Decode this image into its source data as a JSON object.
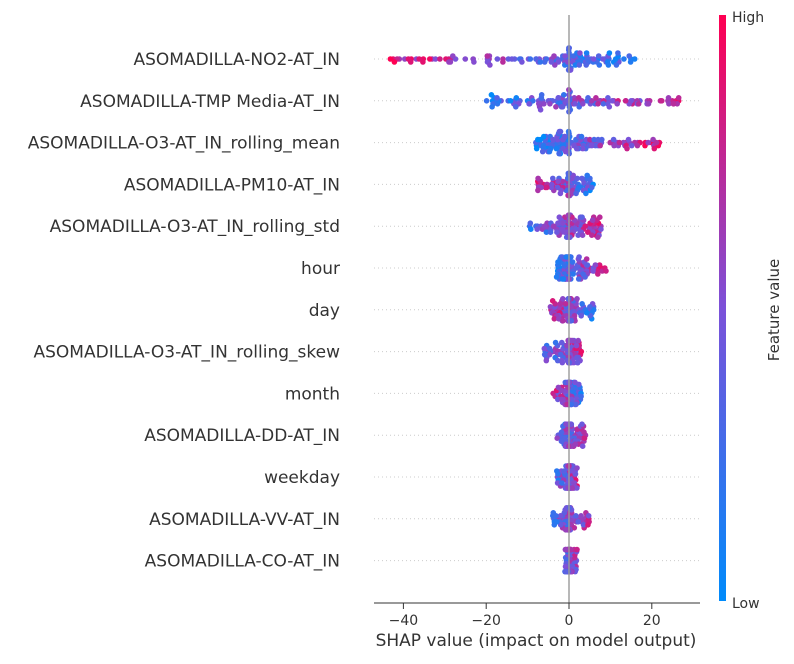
{
  "chart_data": {
    "type": "scatter",
    "subtype": "shap-beeswarm",
    "xlabel": "SHAP value (impact on model output)",
    "x_ticks": [
      -40,
      -20,
      0,
      20
    ],
    "x_tick_labels": [
      "−40",
      "−20",
      "0",
      "20"
    ],
    "xlim": [
      -47,
      31
    ],
    "colorbar": {
      "label": "Feature value",
      "high_label": "High",
      "low_label": "Low",
      "low_color": "#008bfb",
      "high_color": "#ff0052"
    },
    "features": [
      {
        "name": "ASOMADILLA-NO2-AT_IN",
        "min": -44,
        "max": 17,
        "low_side": "right",
        "mix": 0.75,
        "count": 130
      },
      {
        "name": "ASOMADILLA-TMP Media-AT_IN",
        "min": -20,
        "max": 28,
        "low_side": "left",
        "mix": 0.6,
        "count": 120
      },
      {
        "name": "ASOMADILLA-O3-AT_IN_rolling_mean",
        "min": -8,
        "max": 22,
        "low_side": "left",
        "mix": 0.7,
        "count": 130
      },
      {
        "name": "ASOMADILLA-PM10-AT_IN",
        "min": -8,
        "max": 6,
        "low_side": "right",
        "mix": 0.55,
        "count": 90
      },
      {
        "name": "ASOMADILLA-O3-AT_IN_rolling_std",
        "min": -10,
        "max": 8,
        "low_side": "left",
        "mix": 0.45,
        "count": 110
      },
      {
        "name": "hour",
        "min": -3,
        "max": 9,
        "low_side": "left",
        "mix": 0.55,
        "count": 110
      },
      {
        "name": "day",
        "min": -5,
        "max": 6,
        "low_side": "right",
        "mix": 0.5,
        "count": 100
      },
      {
        "name": "ASOMADILLA-O3-AT_IN_rolling_skew",
        "min": -6,
        "max": 3,
        "low_side": "left",
        "mix": 0.4,
        "count": 90
      },
      {
        "name": "month",
        "min": -4,
        "max": 3,
        "low_side": "right",
        "mix": 0.5,
        "count": 80
      },
      {
        "name": "ASOMADILLA-DD-AT_IN",
        "min": -3,
        "max": 4,
        "low_side": "left",
        "mix": 0.3,
        "count": 90
      },
      {
        "name": "weekday",
        "min": -3,
        "max": 2,
        "low_side": "left",
        "mix": 0.35,
        "count": 80
      },
      {
        "name": "ASOMADILLA-VV-AT_IN",
        "min": -4,
        "max": 5,
        "low_side": "left",
        "mix": 0.3,
        "count": 80
      },
      {
        "name": "ASOMADILLA-CO-AT_IN",
        "min": -1,
        "max": 2,
        "low_side": "left",
        "mix": 0.2,
        "count": 60
      }
    ]
  }
}
